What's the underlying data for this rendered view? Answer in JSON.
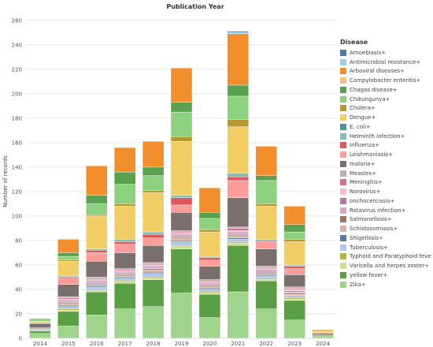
{
  "chart_data": {
    "type": "bar",
    "stacked": true,
    "title": "Publication Year",
    "ylabel": "Number of records",
    "xlabel": "",
    "ylim": [
      0,
      265
    ],
    "yticks": [
      0,
      20,
      40,
      60,
      80,
      100,
      120,
      140,
      160,
      180,
      200,
      220,
      240,
      260
    ],
    "grid": true,
    "legend_position": "right",
    "legend_title": "Disease",
    "categories": [
      "2014",
      "2015",
      "2016",
      "2017",
      "2018",
      "2019",
      "2020",
      "2021",
      "2022",
      "2023",
      "2024"
    ],
    "series": [
      {
        "name": "Amoebiasis+",
        "color": "#4e79a7",
        "values": [
          0,
          0,
          0,
          0,
          0,
          0,
          0,
          1,
          0,
          0,
          0
        ]
      },
      {
        "name": "Antimicrobial resistance+",
        "color": "#a0cbe8",
        "values": [
          0,
          0,
          0,
          0,
          0,
          0,
          0,
          1,
          0,
          0,
          0
        ]
      },
      {
        "name": "Arboviral diseases+",
        "color": "#f28e2b",
        "values": [
          0,
          11,
          24,
          20,
          21,
          28,
          20,
          42,
          24,
          15,
          0
        ]
      },
      {
        "name": "Campylobacter enteritis+",
        "color": "#ffbe7d",
        "values": [
          0,
          0,
          0,
          0,
          0,
          0,
          0,
          0,
          0,
          0,
          0
        ]
      },
      {
        "name": "Chagas disease+",
        "color": "#59a14f",
        "values": [
          1,
          3,
          7,
          10,
          7,
          8,
          5,
          9,
          4,
          6,
          0
        ]
      },
      {
        "name": "Chikungunya+",
        "color": "#8cd17d",
        "values": [
          1,
          3,
          9,
          16,
          12,
          20,
          9,
          19,
          19,
          6,
          0
        ]
      },
      {
        "name": "Cholera+",
        "color": "#b6992d",
        "values": [
          0,
          1,
          1,
          2,
          2,
          4,
          2,
          6,
          2,
          2,
          1
        ]
      },
      {
        "name": "Dengue+",
        "color": "#f1ce63",
        "values": [
          1,
          12,
          27,
          27,
          32,
          44,
          20,
          38,
          27,
          19,
          1
        ]
      },
      {
        "name": "E. coli+",
        "color": "#499894",
        "values": [
          0,
          0,
          0,
          0,
          0,
          0,
          0,
          0,
          0,
          0,
          0
        ]
      },
      {
        "name": "Helminth infection+",
        "color": "#86bcb6",
        "values": [
          0,
          1,
          1,
          2,
          2,
          2,
          1,
          3,
          1,
          1,
          0
        ]
      },
      {
        "name": "Influenza+",
        "color": "#e15759",
        "values": [
          0,
          1,
          2,
          2,
          3,
          6,
          2,
          3,
          1,
          2,
          0
        ]
      },
      {
        "name": "Leishmaniasis+",
        "color": "#ff9d9a",
        "values": [
          1,
          5,
          7,
          7,
          6,
          6,
          5,
          14,
          6,
          5,
          1
        ]
      },
      {
        "name": "malaria+",
        "color": "#79706e",
        "values": [
          3,
          10,
          13,
          13,
          14,
          15,
          11,
          24,
          14,
          10,
          1
        ]
      },
      {
        "name": "Measles+",
        "color": "#bab0ac",
        "values": [
          0,
          1,
          1,
          1,
          1,
          1,
          1,
          1,
          1,
          1,
          0
        ]
      },
      {
        "name": "Meningitis+",
        "color": "#d37295",
        "values": [
          0,
          1,
          1,
          1,
          1,
          1,
          1,
          2,
          1,
          1,
          0
        ]
      },
      {
        "name": "Norovirus+",
        "color": "#fabfd2",
        "values": [
          0,
          1,
          1,
          1,
          1,
          1,
          1,
          1,
          1,
          1,
          0
        ]
      },
      {
        "name": "onchocerciasis+",
        "color": "#b07aa1",
        "values": [
          0,
          1,
          1,
          1,
          1,
          1,
          1,
          1,
          1,
          1,
          0
        ]
      },
      {
        "name": "Rotavirus infection+",
        "color": "#d4a6c8",
        "values": [
          0,
          1,
          1,
          1,
          1,
          1,
          1,
          1,
          1,
          1,
          0
        ]
      },
      {
        "name": "Salmonellosis+",
        "color": "#9d7660",
        "values": [
          1,
          1,
          1,
          1,
          1,
          1,
          1,
          1,
          1,
          1,
          0
        ]
      },
      {
        "name": "Schistosomiasis+",
        "color": "#d7b5a6",
        "values": [
          1,
          1,
          1,
          1,
          2,
          2,
          1,
          2,
          1,
          1,
          0
        ]
      },
      {
        "name": "Shigellosis+",
        "color": "#5778a4",
        "values": [
          0,
          1,
          1,
          1,
          1,
          1,
          1,
          1,
          1,
          0,
          0
        ]
      },
      {
        "name": "Tuberculosis+",
        "color": "#aec6e8",
        "values": [
          1,
          2,
          2,
          2,
          3,
          3,
          2,
          2,
          2,
          2,
          0
        ]
      },
      {
        "name": "Typhoid and Paratyphoid fever+",
        "color": "#b5b43b",
        "values": [
          0,
          1,
          1,
          1,
          1,
          1,
          1,
          1,
          1,
          1,
          0
        ]
      },
      {
        "name": "Varicella and herpes zoster+",
        "color": "#ccdf9c",
        "values": [
          0,
          1,
          1,
          1,
          1,
          2,
          1,
          2,
          1,
          1,
          0
        ]
      },
      {
        "name": "yellow fever+",
        "color": "#5b9f45",
        "values": [
          2,
          12,
          19,
          21,
          22,
          36,
          19,
          38,
          23,
          16,
          1
        ]
      },
      {
        "name": "Zika+",
        "color": "#9fd48c",
        "values": [
          4,
          10,
          19,
          24,
          26,
          37,
          17,
          38,
          24,
          15,
          2
        ]
      }
    ]
  }
}
